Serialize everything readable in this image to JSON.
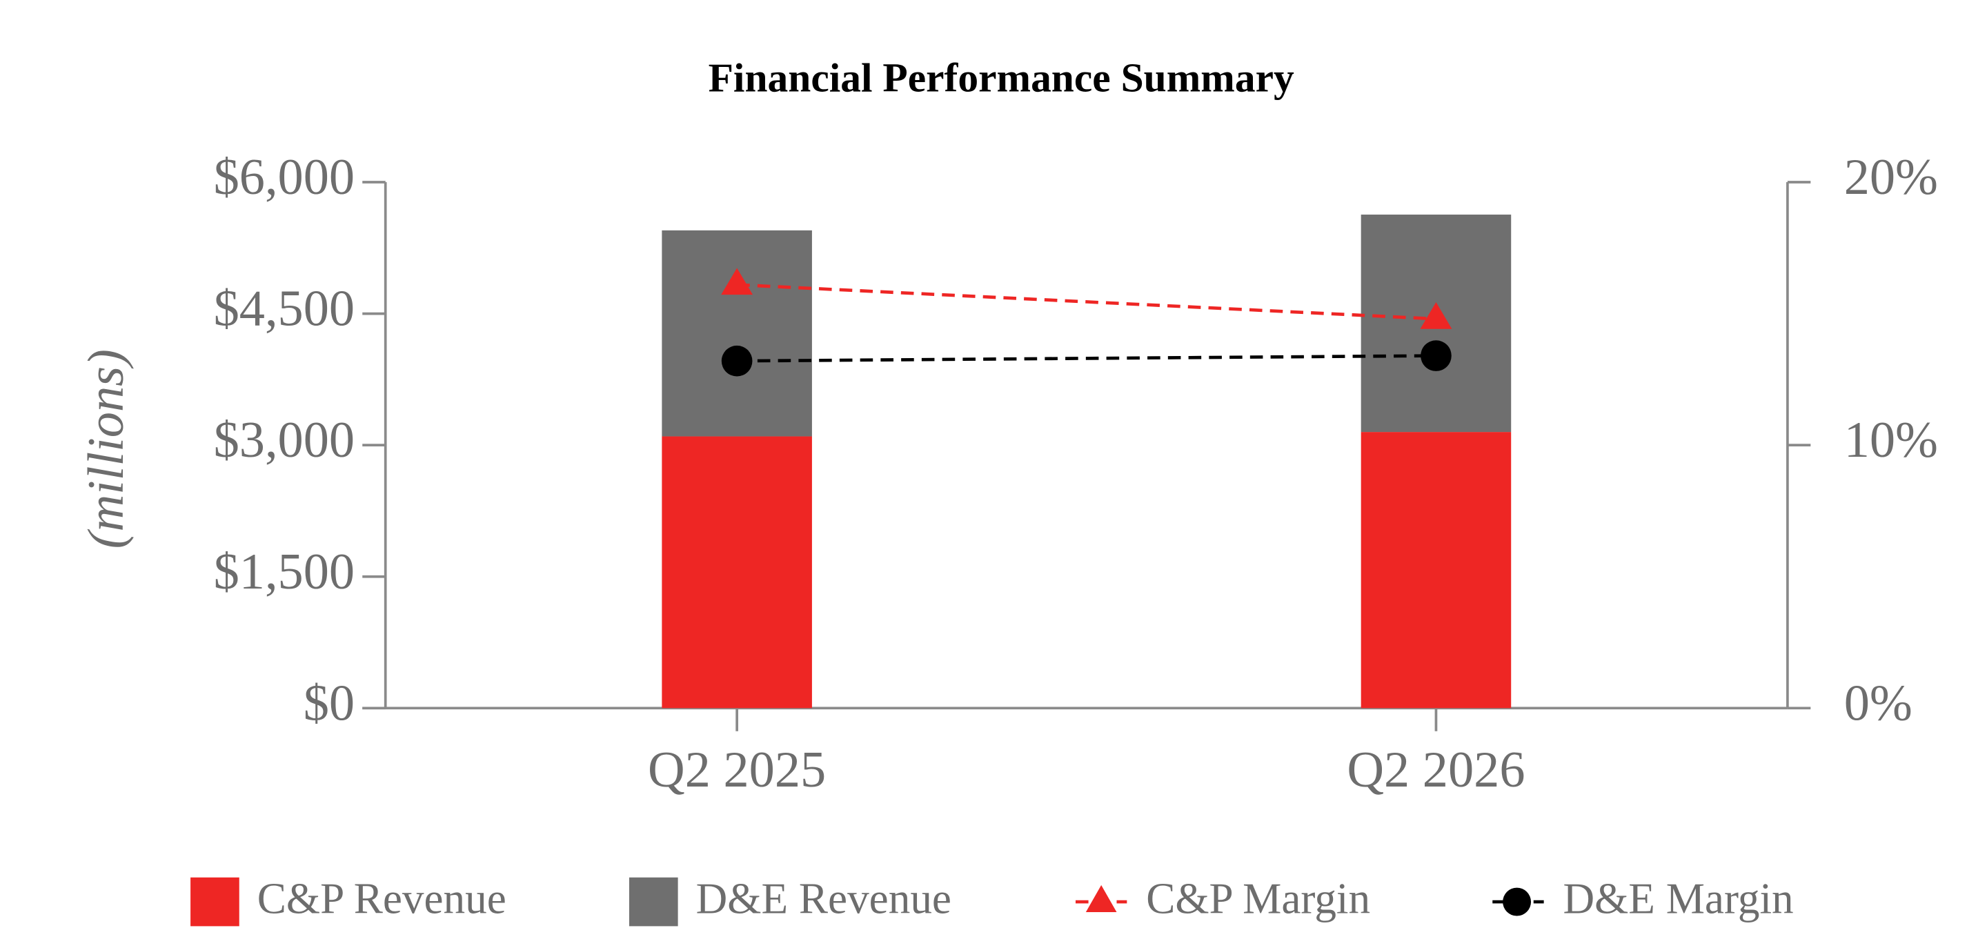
{
  "chart_data": {
    "type": "bar",
    "stacked": true,
    "title": "Financial Performance Summary",
    "y_label": "(millions)",
    "categories": [
      "Q2 2025",
      "Q2 2026"
    ],
    "series": [
      {
        "name": "C&P Revenue",
        "color": "#ee2624",
        "values": [
          3100,
          3150
        ],
        "type": "bar"
      },
      {
        "name": "D&E Revenue",
        "color": "#6f6f6f",
        "values": [
          2350,
          2480
        ],
        "type": "bar"
      },
      {
        "name": "C&P Margin",
        "color": "#ee2624",
        "values": [
          16.1,
          14.8
        ],
        "type": "line",
        "axis": "y2",
        "marker": "triangle",
        "dashed": true
      },
      {
        "name": "D&E Margin",
        "color": "#000000",
        "values": [
          13.2,
          13.4
        ],
        "type": "line",
        "axis": "y2",
        "marker": "circle",
        "dashed": true
      }
    ],
    "ylim": [
      0,
      6000
    ],
    "yticks": [
      {
        "value": 0,
        "label": "$0"
      },
      {
        "value": 1500,
        "label": "$1,500"
      },
      {
        "value": 3000,
        "label": "$3,000"
      },
      {
        "value": 4500,
        "label": "$4,500"
      },
      {
        "value": 6000,
        "label": "$6,000"
      }
    ],
    "y2lim": [
      0,
      20
    ],
    "y2ticks": [
      {
        "value": 0,
        "label": "0%"
      },
      {
        "value": 10,
        "label": "10%"
      },
      {
        "value": 20,
        "label": "20%"
      }
    ],
    "grid": false,
    "legend": "bottom"
  }
}
